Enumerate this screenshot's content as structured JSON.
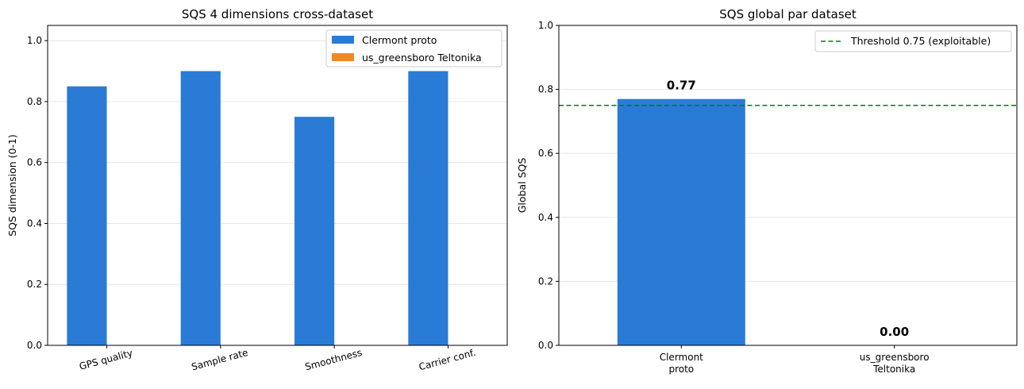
{
  "chart_data": [
    {
      "type": "bar",
      "title": "SQS 4 dimensions cross-dataset",
      "xlabel": "",
      "ylabel": "SQS dimension (0-1)",
      "ylim": [
        0,
        1.05
      ],
      "yticks": [
        "0.0",
        "0.2",
        "0.4",
        "0.6",
        "0.8",
        "1.0"
      ],
      "ytick_values": [
        0,
        0.2,
        0.4,
        0.6,
        0.8,
        1.0
      ],
      "categories": [
        "GPS quality",
        "Sample rate",
        "Smoothness",
        "Carrier conf."
      ],
      "series": [
        {
          "name": "Clermont proto",
          "color": "#2a7bd6",
          "values": [
            0.85,
            0.9,
            0.75,
            0.9
          ]
        },
        {
          "name": "us_greensboro Teltonika",
          "color": "#f08a24",
          "values": [
            0,
            0,
            0,
            0
          ]
        }
      ],
      "grid": "y",
      "legend": "top-right"
    },
    {
      "type": "bar",
      "title": "SQS global par dataset",
      "xlabel": "",
      "ylabel": "Global SQS",
      "ylim": [
        0,
        1.0
      ],
      "yticks": [
        "0.0",
        "0.2",
        "0.4",
        "0.6",
        "0.8",
        "1.0"
      ],
      "ytick_values": [
        0,
        0.2,
        0.4,
        0.6,
        0.8,
        1.0
      ],
      "categories": [
        [
          "Clermont",
          "proto"
        ],
        [
          "us_greensboro",
          "Teltonika"
        ]
      ],
      "values": [
        0.77,
        0.0
      ],
      "data_labels": [
        "0.77",
        "0.00"
      ],
      "colors": [
        "#2a7bd6",
        "#f08a24"
      ],
      "threshold": {
        "value": 0.75,
        "label": "Threshold 0.75 (exploitable)",
        "color": "#008000"
      },
      "grid": "y",
      "legend": "top-right"
    }
  ]
}
